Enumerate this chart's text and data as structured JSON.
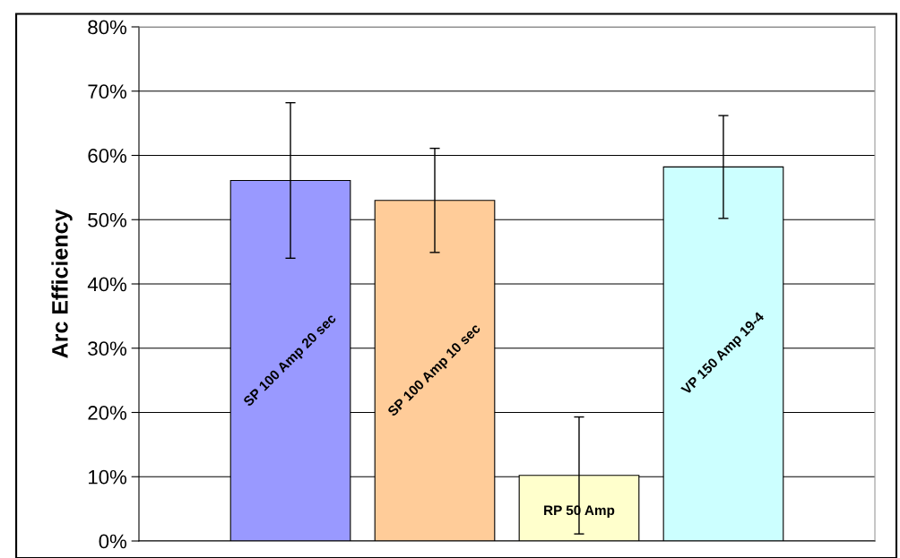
{
  "chart_data": {
    "type": "bar",
    "ylabel": "Arc Efficiency",
    "categories": [
      "SP 100 Amp 20 sec",
      "SP 100 Amp 10 sec",
      "RP 50 Amp",
      "VP 150 Amp 19-4"
    ],
    "values": [
      56.1,
      53.0,
      10.2,
      58.2
    ],
    "errors": [
      12.1,
      8.1,
      9.1,
      8.0
    ],
    "colors": [
      "#9999ff",
      "#ffcc99",
      "#ffffcc",
      "#ccffff"
    ],
    "ylim": [
      0,
      80
    ],
    "yticks": [
      {
        "value": 0,
        "label": "0%"
      },
      {
        "value": 10,
        "label": "10%"
      },
      {
        "value": 20,
        "label": "20%"
      },
      {
        "value": 30,
        "label": "30%"
      },
      {
        "value": 40,
        "label": "40%"
      },
      {
        "value": 50,
        "label": "50%"
      },
      {
        "value": 60,
        "label": "60%"
      },
      {
        "value": 70,
        "label": "70%"
      },
      {
        "value": 80,
        "label": "80%"
      }
    ],
    "grid": "y",
    "tick_labels": "y"
  }
}
